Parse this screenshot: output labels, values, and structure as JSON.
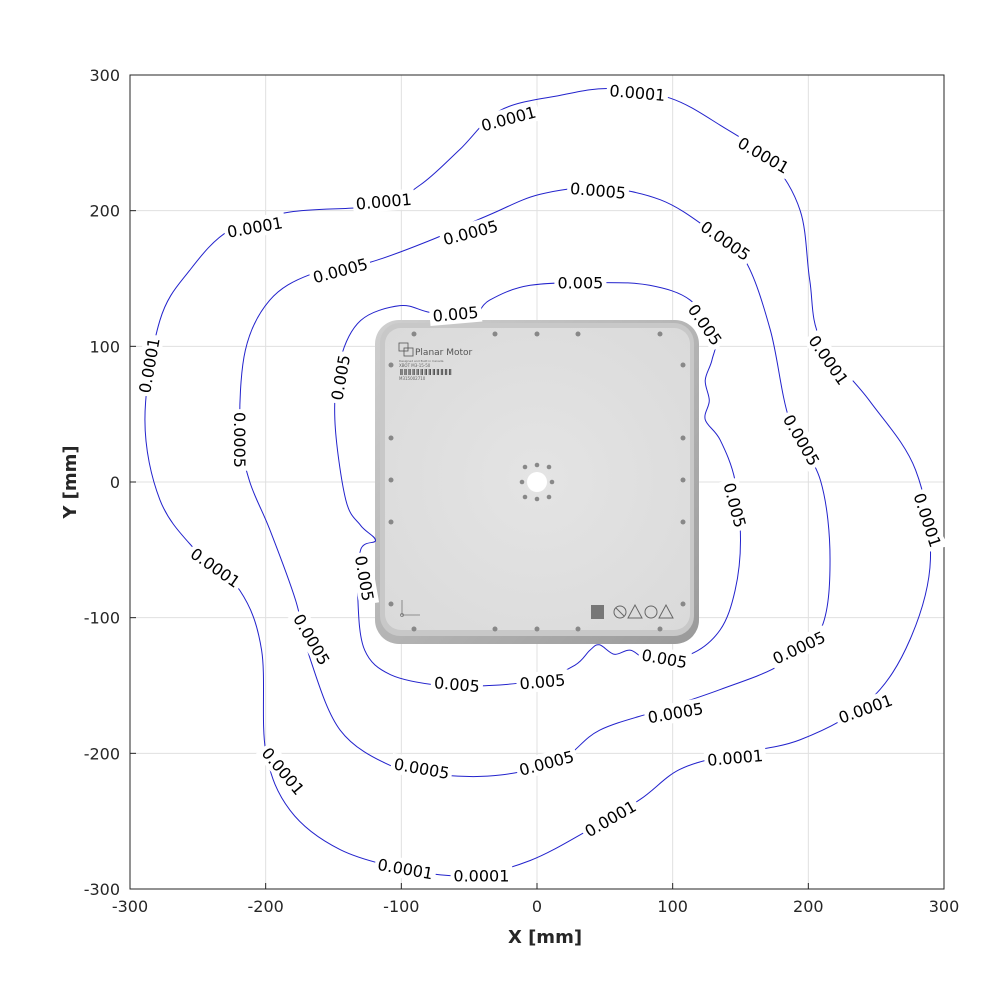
{
  "chart_data": {
    "type": "contour",
    "xlabel": "X [mm]",
    "ylabel": "Y [mm]",
    "xlim": [
      -300,
      300
    ],
    "ylim": [
      -300,
      300
    ],
    "xticks": [
      "-300",
      "-200",
      "-100",
      "0",
      "100",
      "200",
      "300"
    ],
    "yticks": [
      "300",
      "200",
      "100",
      "0",
      "-100",
      "-200",
      "-300"
    ],
    "grid": true,
    "line_color": "#2222cc",
    "contours": [
      {
        "level": "0.0001",
        "points": [
          [
            -289,
            46
          ],
          [
            -278,
            119
          ],
          [
            -256,
            156
          ],
          [
            -226,
            186
          ],
          [
            -182,
            199
          ],
          [
            -116,
            204
          ],
          [
            -86,
            219
          ],
          [
            -57,
            245
          ],
          [
            -27,
            274
          ],
          [
            17,
            285
          ],
          [
            54,
            290
          ],
          [
            98,
            283
          ],
          [
            135,
            263
          ],
          [
            172,
            237
          ],
          [
            194,
            200
          ],
          [
            201,
            149
          ],
          [
            209,
            105
          ],
          [
            245,
            60
          ],
          [
            279,
            9
          ],
          [
            290,
            -57
          ],
          [
            275,
            -116
          ],
          [
            245,
            -161
          ],
          [
            194,
            -190
          ],
          [
            142,
            -201
          ],
          [
            105,
            -212
          ],
          [
            76,
            -234
          ],
          [
            39,
            -256
          ],
          [
            -5,
            -279
          ],
          [
            -49,
            -290
          ],
          [
            -94,
            -286
          ],
          [
            -145,
            -271
          ],
          [
            -182,
            -242
          ],
          [
            -200,
            -198
          ],
          [
            -203,
            -124
          ],
          [
            -219,
            -80
          ],
          [
            -252,
            -50
          ],
          [
            -278,
            -13
          ]
        ],
        "labels": [
          [
            -21,
            268
          ],
          [
            -113,
            207
          ],
          [
            -208,
            188
          ],
          [
            -286,
            86
          ],
          [
            -237,
            -63
          ],
          [
            -187,
            -213
          ],
          [
            -97,
            -285
          ],
          [
            -41,
            -290
          ],
          [
            54,
            -248
          ],
          [
            146,
            -203
          ],
          [
            242,
            -167
          ],
          [
            288,
            -28
          ],
          [
            215,
            90
          ],
          [
            167,
            241
          ],
          [
            74,
            287
          ]
        ]
      },
      {
        "level": "0.0005",
        "points": [
          [
            -219,
            38
          ],
          [
            -215,
            97
          ],
          [
            -197,
            134
          ],
          [
            -167,
            153
          ],
          [
            -123,
            162
          ],
          [
            -79,
            178
          ],
          [
            -35,
            197
          ],
          [
            2,
            212
          ],
          [
            46,
            217
          ],
          [
            91,
            208
          ],
          [
            127,
            186
          ],
          [
            153,
            164
          ],
          [
            172,
            112
          ],
          [
            186,
            46
          ],
          [
            209,
            1
          ],
          [
            216,
            -57
          ],
          [
            209,
            -109
          ],
          [
            179,
            -135
          ],
          [
            135,
            -153
          ],
          [
            91,
            -168
          ],
          [
            46,
            -183
          ],
          [
            17,
            -205
          ],
          [
            -27,
            -216
          ],
          [
            -71,
            -216
          ],
          [
            -108,
            -209
          ],
          [
            -145,
            -183
          ],
          [
            -167,
            -131
          ],
          [
            -178,
            -87
          ],
          [
            -197,
            -35
          ],
          [
            -212,
            1
          ]
        ],
        "labels": [
          [
            45,
            215
          ],
          [
            -49,
            184
          ],
          [
            -145,
            156
          ],
          [
            -219,
            31
          ],
          [
            -166,
            -116
          ],
          [
            -85,
            -211
          ],
          [
            7,
            -207
          ],
          [
            102,
            -170
          ],
          [
            193,
            -122
          ],
          [
            195,
            31
          ],
          [
            139,
            178
          ]
        ]
      },
      {
        "level": "0.005",
        "points": [
          [
            -141,
            -13
          ],
          [
            -149,
            46
          ],
          [
            -145,
            90
          ],
          [
            -130,
            119
          ],
          [
            -101,
            130
          ],
          [
            -79,
            125
          ],
          [
            -49,
            121
          ],
          [
            -35,
            134
          ],
          [
            -5,
            145
          ],
          [
            46,
            147
          ],
          [
            83,
            145
          ],
          [
            113,
            134
          ],
          [
            131,
            108
          ],
          [
            129,
            90
          ],
          [
            124,
            75
          ],
          [
            127,
            60
          ],
          [
            124,
            46
          ],
          [
            135,
            31
          ],
          [
            146,
            1
          ],
          [
            150,
            -43
          ],
          [
            146,
            -80
          ],
          [
            135,
            -109
          ],
          [
            113,
            -127
          ],
          [
            83,
            -131
          ],
          [
            69,
            -124
          ],
          [
            57,
            -127
          ],
          [
            46,
            -120
          ],
          [
            39,
            -124
          ],
          [
            28,
            -135
          ],
          [
            2,
            -146
          ],
          [
            -35,
            -150
          ],
          [
            -71,
            -150
          ],
          [
            -108,
            -142
          ],
          [
            -127,
            -124
          ],
          [
            -132,
            -87
          ],
          [
            -130,
            -50
          ],
          [
            -119,
            -43
          ],
          [
            -130,
            -32
          ]
        ],
        "labels": [
          [
            32,
            147
          ],
          [
            -60,
            124
          ],
          [
            -145,
            77
          ],
          [
            124,
            116
          ],
          [
            146,
            -17
          ],
          [
            94,
            -130
          ],
          [
            4,
            -147
          ],
          [
            -59,
            -149
          ],
          [
            -127,
            -71
          ]
        ]
      }
    ],
    "background_image": {
      "logo_text": "Planar Motor",
      "subtitle_text": "Designed and Built in Canada",
      "model_text": "XBOT M3-15-50",
      "serial_text": "M315002710"
    }
  }
}
